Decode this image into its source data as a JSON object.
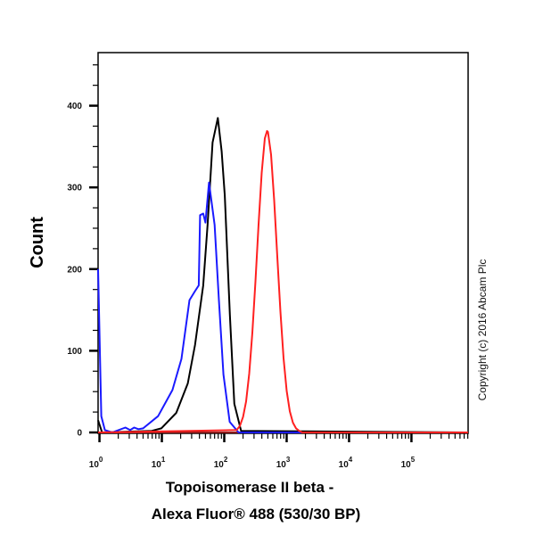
{
  "chart_data": {
    "type": "line",
    "title": "",
    "xlabel_lines": [
      "Topoisomerase II beta -",
      "Alexa Fluor® 488 (530/30 BP)"
    ],
    "ylabel": "Count",
    "x_scale": "log",
    "xlim": [
      0.95,
      810000
    ],
    "ylim": [
      0,
      465
    ],
    "x_ticks": [
      {
        "base": "10",
        "exp": "0",
        "value": 1
      },
      {
        "base": "10",
        "exp": "1",
        "value": 10
      },
      {
        "base": "10",
        "exp": "2",
        "value": 100
      },
      {
        "base": "10",
        "exp": "3",
        "value": 1000
      },
      {
        "base": "10",
        "exp": "4",
        "value": 10000
      },
      {
        "base": "10",
        "exp": "5",
        "value": 100000
      }
    ],
    "y_ticks": [
      "0",
      "100",
      "200",
      "300",
      "400"
    ],
    "grid": false,
    "legend": "none",
    "series": [
      {
        "color": "#000000",
        "x": [
          0.95,
          1.1,
          6.9,
          9.8,
          17,
          26,
          34,
          46,
          54,
          65,
          79,
          91,
          102,
          123,
          145,
          186,
          810000
        ],
        "y": [
          15,
          0,
          2,
          5,
          24,
          60,
          107,
          180,
          254,
          355,
          385,
          344,
          290,
          144,
          35,
          2,
          0
        ]
      },
      {
        "color": "#1a1aff",
        "x": [
          0.95,
          1.0,
          1.07,
          1.22,
          1.6,
          2.6,
          3.1,
          3.6,
          4.2,
          5.0,
          8.7,
          14.8,
          20.6,
          27.7,
          34,
          39,
          41,
          46,
          50,
          57,
          70,
          82,
          97,
          122,
          170,
          810000
        ],
        "y": [
          200,
          120,
          20,
          3,
          0,
          6,
          3,
          6,
          4,
          5,
          20,
          52,
          90,
          162,
          173,
          180,
          266,
          268,
          257,
          306,
          254,
          162,
          71,
          13,
          0,
          0
        ]
      },
      {
        "color": "#ff2020",
        "x": [
          0.95,
          158,
          178,
          200,
          224,
          251,
          282,
          316,
          355,
          398,
          447,
          485,
          501,
          562,
          631,
          708,
          794,
          891,
          1000,
          1122,
          1259,
          1413,
          1585,
          1778,
          810000
        ],
        "y": [
          0,
          3,
          8,
          19,
          38,
          72,
          122,
          185,
          255,
          318,
          360,
          369,
          368,
          340,
          284,
          215,
          148,
          91,
          51,
          26,
          12,
          5,
          2,
          0,
          0
        ]
      }
    ]
  },
  "copyright": "Copyright (c) 2016 Abcam Plc"
}
